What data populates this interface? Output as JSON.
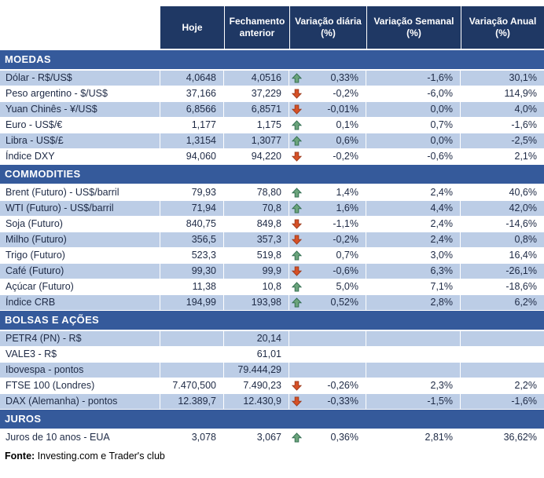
{
  "colors": {
    "header_bg": "#1F3864",
    "section_bg": "#355A9B",
    "row_shade": "#BCCDE6",
    "arrow_up_fill": "#6BA47B",
    "arrow_up_stroke": "#2F6B4F",
    "arrow_down_fill": "#D65026",
    "arrow_down_stroke": "#9C3A1C"
  },
  "footer": {
    "label": "Fonte:",
    "text": " Investing.com e Trader's club"
  },
  "chart_data": {
    "type": "table",
    "columns": [
      "Hoje",
      "Fechamento anterior",
      "Variação diária (%)",
      "Variação Semanal (%)",
      "Variação Anual (%)"
    ],
    "sections": [
      {
        "title": "MOEDAS",
        "rows": [
          {
            "label": "Dólar - R$/US$",
            "today": "4,0648",
            "prev": "4,0516",
            "trend": "up",
            "daily": "0,33%",
            "weekly": "-1,6%",
            "annual": "30,1%",
            "shaded": true
          },
          {
            "label": "Peso argentino - $/US$",
            "today": "37,166",
            "prev": "37,229",
            "trend": "down",
            "daily": "-0,2%",
            "weekly": "-6,0%",
            "annual": "114,9%",
            "shaded": false
          },
          {
            "label": "Yuan Chinês - ¥/US$",
            "today": "6,8566",
            "prev": "6,8571",
            "trend": "down",
            "daily": "-0,01%",
            "weekly": "0,0%",
            "annual": "4,0%",
            "shaded": true
          },
          {
            "label": "Euro - US$/€",
            "today": "1,177",
            "prev": "1,175",
            "trend": "up",
            "daily": "0,1%",
            "weekly": "0,7%",
            "annual": "-1,6%",
            "shaded": false
          },
          {
            "label": "Libra - US$/£",
            "today": "1,3154",
            "prev": "1,3077",
            "trend": "up",
            "daily": "0,6%",
            "weekly": "0,0%",
            "annual": "-2,5%",
            "shaded": true
          },
          {
            "label": "Índice DXY",
            "today": "94,060",
            "prev": "94,220",
            "trend": "down",
            "daily": "-0,2%",
            "weekly": "-0,6%",
            "annual": "2,1%",
            "shaded": false
          }
        ]
      },
      {
        "title": "COMMODITIES",
        "rows": [
          {
            "label": "Brent (Futuro) - US$/barril",
            "today": "79,93",
            "prev": "78,80",
            "trend": "up",
            "daily": "1,4%",
            "weekly": "2,4%",
            "annual": "40,6%",
            "shaded": false
          },
          {
            "label": "WTI (Futuro) - US$/barril",
            "today": "71,94",
            "prev": "70,8",
            "trend": "up",
            "daily": "1,6%",
            "weekly": "4,4%",
            "annual": "42,0%",
            "shaded": true
          },
          {
            "label": "Soja (Futuro)",
            "today": "840,75",
            "prev": "849,8",
            "trend": "down",
            "daily": "-1,1%",
            "weekly": "2,4%",
            "annual": "-14,6%",
            "shaded": false
          },
          {
            "label": "Milho (Futuro)",
            "today": "356,5",
            "prev": "357,3",
            "trend": "down",
            "daily": "-0,2%",
            "weekly": "2,4%",
            "annual": "0,8%",
            "shaded": true
          },
          {
            "label": "Trigo (Futuro)",
            "today": "523,3",
            "prev": "519,8",
            "trend": "up",
            "daily": "0,7%",
            "weekly": "3,0%",
            "annual": "16,4%",
            "shaded": false
          },
          {
            "label": "Café (Futuro)",
            "today": "99,30",
            "prev": "99,9",
            "trend": "down",
            "daily": "-0,6%",
            "weekly": "6,3%",
            "annual": "-26,1%",
            "shaded": true
          },
          {
            "label": "Açúcar (Futuro)",
            "today": "11,38",
            "prev": "10,8",
            "trend": "up",
            "daily": "5,0%",
            "weekly": "7,1%",
            "annual": "-18,6%",
            "shaded": false
          },
          {
            "label": "Índice CRB",
            "today": "194,99",
            "prev": "193,98",
            "trend": "up",
            "daily": "0,52%",
            "weekly": "2,8%",
            "annual": "6,2%",
            "shaded": true
          }
        ]
      },
      {
        "title": "BOLSAS E AÇÕES",
        "rows": [
          {
            "label": "PETR4 (PN) - R$",
            "today": "",
            "prev": "20,14",
            "trend": "none",
            "daily": "",
            "weekly": "",
            "annual": "",
            "shaded": true
          },
          {
            "label": "VALE3 - R$",
            "today": "",
            "prev": "61,01",
            "trend": "none",
            "daily": "",
            "weekly": "",
            "annual": "",
            "shaded": false
          },
          {
            "label": "Ibovespa - pontos",
            "today": "",
            "prev": "79.444,29",
            "trend": "none",
            "daily": "",
            "weekly": "",
            "annual": "",
            "shaded": true
          },
          {
            "label": "FTSE 100 (Londres)",
            "today": "7.470,500",
            "prev": "7.490,23",
            "trend": "down",
            "daily": "-0,26%",
            "weekly": "2,3%",
            "annual": "2,2%",
            "shaded": false
          },
          {
            "label": "DAX (Alemanha) - pontos",
            "today": "12.389,7",
            "prev": "12.430,9",
            "trend": "down",
            "daily": "-0,33%",
            "weekly": "-1,5%",
            "annual": "-1,6%",
            "shaded": true
          }
        ]
      },
      {
        "title": "JUROS",
        "rows": [
          {
            "label": "Juros de 10 anos - EUA",
            "today": "3,078",
            "prev": "3,067",
            "trend": "up",
            "daily": "0,36%",
            "weekly": "2,81%",
            "annual": "36,62%",
            "shaded": false
          }
        ]
      }
    ]
  }
}
